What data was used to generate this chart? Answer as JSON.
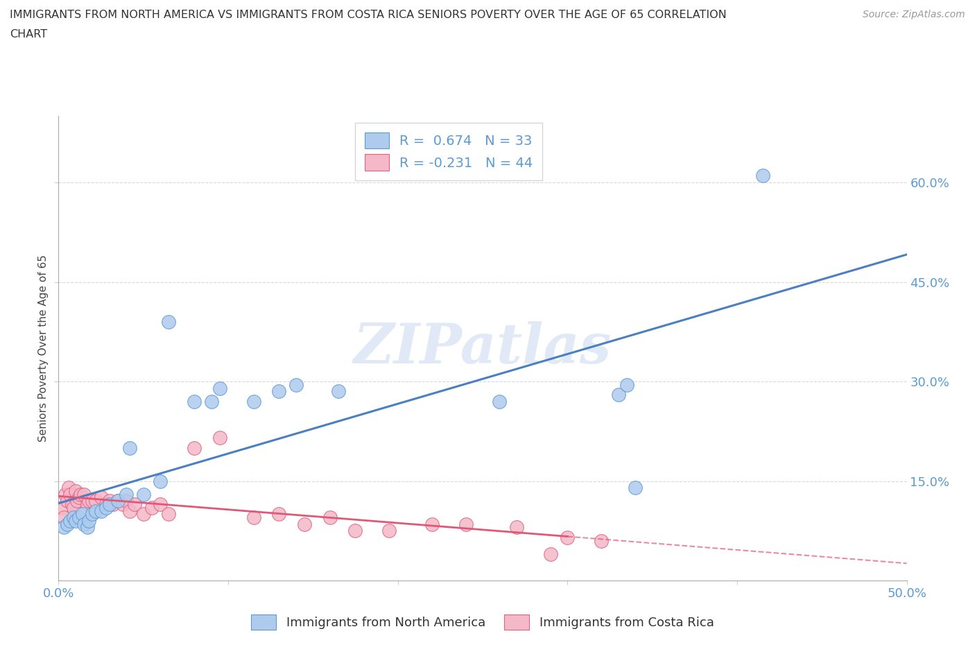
{
  "title_line1": "IMMIGRANTS FROM NORTH AMERICA VS IMMIGRANTS FROM COSTA RICA SENIORS POVERTY OVER THE AGE OF 65 CORRELATION",
  "title_line2": "CHART",
  "source": "Source: ZipAtlas.com",
  "ylabel": "Seniors Poverty Over the Age of 65",
  "xlim": [
    0.0,
    0.5
  ],
  "ylim": [
    0.0,
    0.7
  ],
  "xticks": [
    0.0,
    0.1,
    0.2,
    0.3,
    0.4,
    0.5
  ],
  "yticks": [
    0.15,
    0.3,
    0.45,
    0.6
  ],
  "ytick_labels_right": [
    "15.0%",
    "30.0%",
    "45.0%",
    "60.0%"
  ],
  "R_blue": 0.674,
  "N_blue": 33,
  "R_pink": -0.231,
  "N_pink": 44,
  "blue_fill": "#aecbee",
  "blue_edge": "#5b9bd5",
  "pink_fill": "#f4b8c8",
  "pink_edge": "#e06080",
  "blue_line_color": "#4a7fc1",
  "pink_line_color": "#e05878",
  "watermark": "ZIPatlas",
  "blue_scatter_x": [
    0.003,
    0.005,
    0.007,
    0.009,
    0.01,
    0.012,
    0.014,
    0.015,
    0.017,
    0.018,
    0.02,
    0.022,
    0.025,
    0.028,
    0.03,
    0.035,
    0.04,
    0.042,
    0.05,
    0.06,
    0.065,
    0.08,
    0.09,
    0.095,
    0.115,
    0.13,
    0.14,
    0.165,
    0.26,
    0.33,
    0.335,
    0.34,
    0.415
  ],
  "blue_scatter_y": [
    0.08,
    0.085,
    0.09,
    0.095,
    0.09,
    0.095,
    0.1,
    0.085,
    0.08,
    0.09,
    0.1,
    0.105,
    0.105,
    0.11,
    0.115,
    0.12,
    0.13,
    0.2,
    0.13,
    0.15,
    0.39,
    0.27,
    0.27,
    0.29,
    0.27,
    0.285,
    0.295,
    0.285,
    0.27,
    0.28,
    0.295,
    0.14,
    0.61
  ],
  "pink_scatter_x": [
    0.002,
    0.003,
    0.004,
    0.005,
    0.006,
    0.007,
    0.008,
    0.009,
    0.01,
    0.011,
    0.012,
    0.013,
    0.015,
    0.017,
    0.018,
    0.02,
    0.022,
    0.025,
    0.028,
    0.03,
    0.032,
    0.035,
    0.038,
    0.04,
    0.042,
    0.045,
    0.05,
    0.055,
    0.06,
    0.065,
    0.08,
    0.095,
    0.115,
    0.13,
    0.145,
    0.16,
    0.175,
    0.195,
    0.22,
    0.24,
    0.27,
    0.29,
    0.3,
    0.32
  ],
  "pink_scatter_y": [
    0.11,
    0.095,
    0.13,
    0.12,
    0.14,
    0.13,
    0.115,
    0.11,
    0.135,
    0.12,
    0.125,
    0.13,
    0.13,
    0.115,
    0.12,
    0.12,
    0.12,
    0.125,
    0.115,
    0.12,
    0.115,
    0.12,
    0.115,
    0.12,
    0.105,
    0.115,
    0.1,
    0.11,
    0.115,
    0.1,
    0.2,
    0.215,
    0.095,
    0.1,
    0.085,
    0.095,
    0.075,
    0.075,
    0.085,
    0.085,
    0.08,
    0.04,
    0.065,
    0.06
  ],
  "grid_color": "#d8d8d8",
  "background_color": "#ffffff",
  "tick_label_color": "#5b9bd5"
}
